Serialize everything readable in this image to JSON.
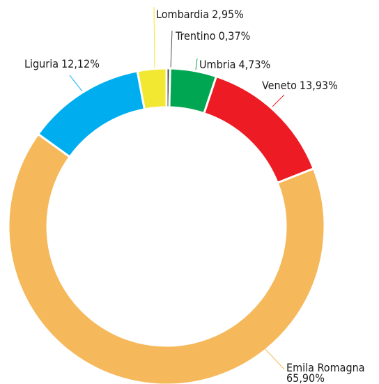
{
  "chart_data": {
    "type": "donut",
    "categories": [
      "Trentino",
      "Umbria",
      "Veneto",
      "Emila Romagna",
      "Liguria",
      "Lombardia"
    ],
    "values": [
      0.37,
      4.73,
      13.93,
      65.9,
      12.12,
      2.95
    ],
    "value_labels": [
      "0,37%",
      "4,73%",
      "13,93%",
      "65,90%",
      "12,12%",
      "2,95%"
    ],
    "colors": [
      "#4d4d4d",
      "#00a651",
      "#ed1c24",
      "#f5b95c",
      "#00aeef",
      "#f2e731"
    ]
  }
}
